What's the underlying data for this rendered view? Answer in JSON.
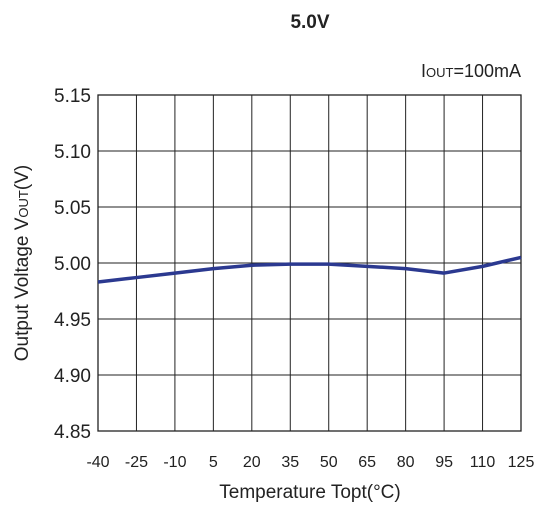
{
  "chart_data": {
    "type": "line",
    "title": "5.0V",
    "condition": {
      "main": "I",
      "sub": "OUT",
      "rest": "=100mA"
    },
    "xlabel": "Temperature Topt(°C)",
    "ylabel": {
      "main": "Output Voltage V",
      "sub": "OUT",
      "rest": "(V)"
    },
    "xlim": [
      -40,
      125
    ],
    "ylim": [
      4.85,
      5.15
    ],
    "x_ticks": [
      -40,
      -25,
      -10,
      5,
      20,
      35,
      50,
      65,
      80,
      95,
      110,
      125
    ],
    "y_ticks": [
      "5.15",
      "5.10",
      "5.05",
      "5.00",
      "4.95",
      "4.90",
      "4.85"
    ],
    "grid": true,
    "series": [
      {
        "color": "#2b3990",
        "x": [
          -40,
          -25,
          -10,
          5,
          20,
          35,
          50,
          65,
          80,
          95,
          110,
          125
        ],
        "y": [
          4.983,
          4.987,
          4.991,
          4.995,
          4.998,
          4.999,
          4.999,
          4.997,
          4.995,
          4.991,
          4.997,
          5.005
        ]
      }
    ]
  }
}
